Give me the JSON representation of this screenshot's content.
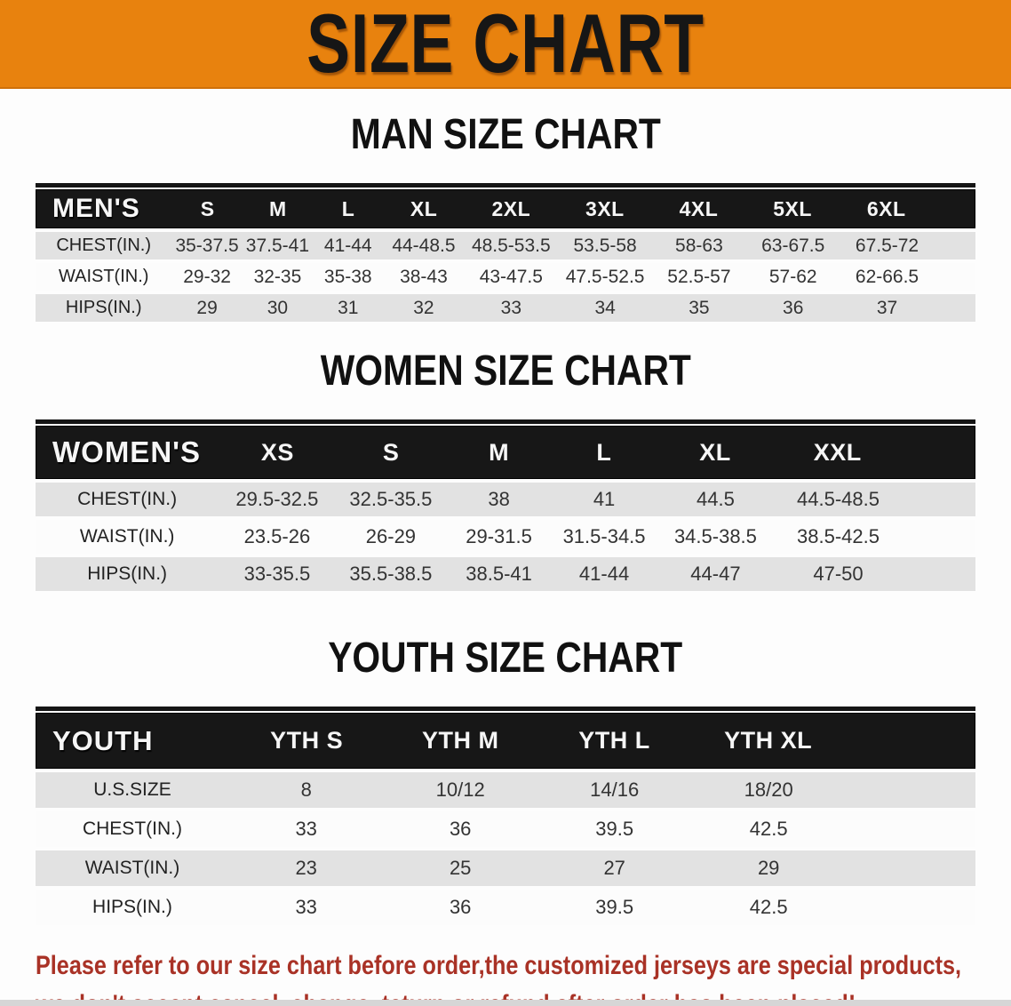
{
  "banner": {
    "title": "SIZE CHART"
  },
  "colors": {
    "banner_bg": "#e8820e",
    "header_bg": "#171717",
    "row_alt": "#e2e2e2",
    "row_white": "#fcfcfc",
    "footer_red": "#a93226",
    "page_bg": "#fdfdfd"
  },
  "sections": [
    {
      "heading": "MAN SIZE CHART",
      "table": {
        "label": "MEN'S",
        "columns": [
          "S",
          "M",
          "L",
          "XL",
          "2XL",
          "3XL",
          "4XL",
          "5XL",
          "6XL"
        ],
        "rows": [
          {
            "label": "CHEST(IN.)",
            "values": [
              "35-37.5",
              "37.5-41",
              "41-44",
              "44-48.5",
              "48.5-53.5",
              "53.5-58",
              "58-63",
              "63-67.5",
              "67.5-72"
            ]
          },
          {
            "label": "WAIST(IN.)",
            "values": [
              "29-32",
              "32-35",
              "35-38",
              "38-43",
              "43-47.5",
              "47.5-52.5",
              "52.5-57",
              "57-62",
              "62-66.5"
            ]
          },
          {
            "label": "HIPS(IN.)",
            "values": [
              "29",
              "30",
              "31",
              "32",
              "33",
              "34",
              "35",
              "36",
              "37"
            ]
          }
        ]
      }
    },
    {
      "heading": "WOMEN SIZE CHART",
      "table": {
        "label": "WOMEN'S",
        "columns": [
          "XS",
          "S",
          "M",
          "L",
          "XL",
          "XXL"
        ],
        "rows": [
          {
            "label": "CHEST(IN.)",
            "values": [
              "29.5-32.5",
              "32.5-35.5",
              "38",
              "41",
              "44.5",
              "44.5-48.5"
            ]
          },
          {
            "label": "WAIST(IN.)",
            "values": [
              "23.5-26",
              "26-29",
              "29-31.5",
              "31.5-34.5",
              "34.5-38.5",
              "38.5-42.5"
            ]
          },
          {
            "label": "HIPS(IN.)",
            "values": [
              "33-35.5",
              "35.5-38.5",
              "38.5-41",
              "41-44",
              "44-47",
              "47-50"
            ]
          }
        ]
      }
    },
    {
      "heading": "YOUTH SIZE CHART",
      "table": {
        "label": "YOUTH",
        "columns": [
          "YTH S",
          "YTH M",
          "YTH L",
          "YTH XL"
        ],
        "rows": [
          {
            "label": "U.S.SIZE",
            "values": [
              "8",
              "10/12",
              "14/16",
              "18/20"
            ]
          },
          {
            "label": "CHEST(IN.)",
            "values": [
              "33",
              "36",
              "39.5",
              "42.5"
            ]
          },
          {
            "label": "WAIST(IN.)",
            "values": [
              "23",
              "25",
              "27",
              "29"
            ]
          },
          {
            "label": "HIPS(IN.)",
            "values": [
              "33",
              "36",
              "39.5",
              "42.5"
            ]
          }
        ]
      }
    }
  ],
  "footer": {
    "line1": "Please refer to our size chart before order,the customized jerseys are special products,",
    "line2": "we don't accept cancel, change, teturn or refund after order has been placed!"
  }
}
